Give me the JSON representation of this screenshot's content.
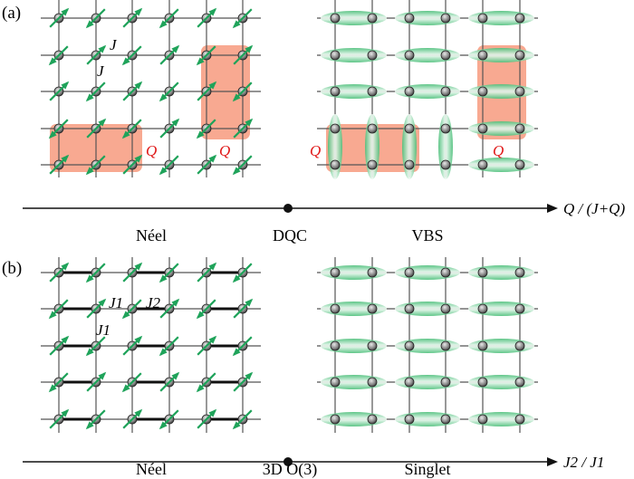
{
  "panel_a": {
    "label": "(a)",
    "coupling_labels": [
      "J",
      "J"
    ],
    "plaquette_labels": [
      "Q",
      "Q",
      "Q",
      "Q"
    ],
    "axis_label": "Q / (J+Q)",
    "phases": [
      "Néel",
      "DQC",
      "VBS"
    ]
  },
  "panel_b": {
    "label": "(b)",
    "coupling_labels": [
      "J1",
      "J2",
      "J1"
    ],
    "axis_label": "J2 / J1",
    "phases": [
      "Néel",
      "3D O(3)",
      "Singlet"
    ]
  },
  "colors": {
    "spin_arrow": "#1fa35a",
    "singlet": "#4cbf7a",
    "plaquette": "#f58c6c",
    "plaquette_label": "#e01a1a",
    "grid": "#555555",
    "site": "#777777"
  }
}
